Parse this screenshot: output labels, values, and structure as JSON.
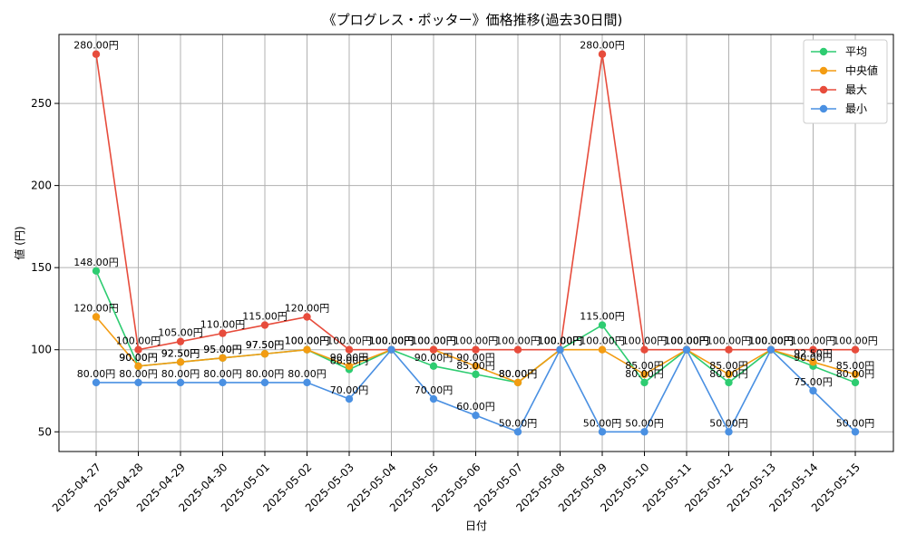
{
  "chart_data": {
    "type": "line",
    "title": "《プログレス・ポッター》価格推移(過去30日間)",
    "xlabel": "日付",
    "ylabel": "値 (円)",
    "ylim": [
      38,
      292
    ],
    "yticks": [
      50,
      100,
      150,
      200,
      250
    ],
    "grid": true,
    "legend_position": "top-right",
    "label_suffix": "円",
    "categories": [
      "2025-04-27",
      "2025-04-28",
      "2025-04-29",
      "2025-04-30",
      "2025-05-01",
      "2025-05-02",
      "2025-05-03",
      "2025-05-04",
      "2025-05-05",
      "2025-05-06",
      "2025-05-07",
      "2025-05-08",
      "2025-05-09",
      "2025-05-10",
      "2025-05-11",
      "2025-05-12",
      "2025-05-13",
      "2025-05-14",
      "2025-05-15"
    ],
    "series": [
      {
        "name": "平均",
        "color": "#2ecc71",
        "values": [
          148,
          90,
          92.5,
          95,
          97.5,
          100,
          88,
          100,
          90,
          85,
          80,
          100,
          115,
          80,
          100,
          80,
          100,
          90,
          80
        ]
      },
      {
        "name": "中央値",
        "color": "#f39c12",
        "values": [
          120,
          90,
          92.5,
          95,
          97.5,
          100,
          90,
          100,
          100,
          90,
          80,
          100,
          100,
          85,
          100,
          85,
          100,
          92.5,
          85
        ]
      },
      {
        "name": "最大",
        "color": "#e74c3c",
        "values": [
          280,
          100,
          105,
          110,
          115,
          120,
          100,
          100,
          100,
          100,
          100,
          100,
          280,
          100,
          100,
          100,
          100,
          100,
          100
        ]
      },
      {
        "name": "最小",
        "color": "#4a90e2",
        "values": [
          80,
          80,
          80,
          80,
          80,
          80,
          70,
          100,
          70,
          60,
          50,
          100,
          50,
          50,
          100,
          50,
          100,
          75,
          50
        ]
      }
    ]
  }
}
